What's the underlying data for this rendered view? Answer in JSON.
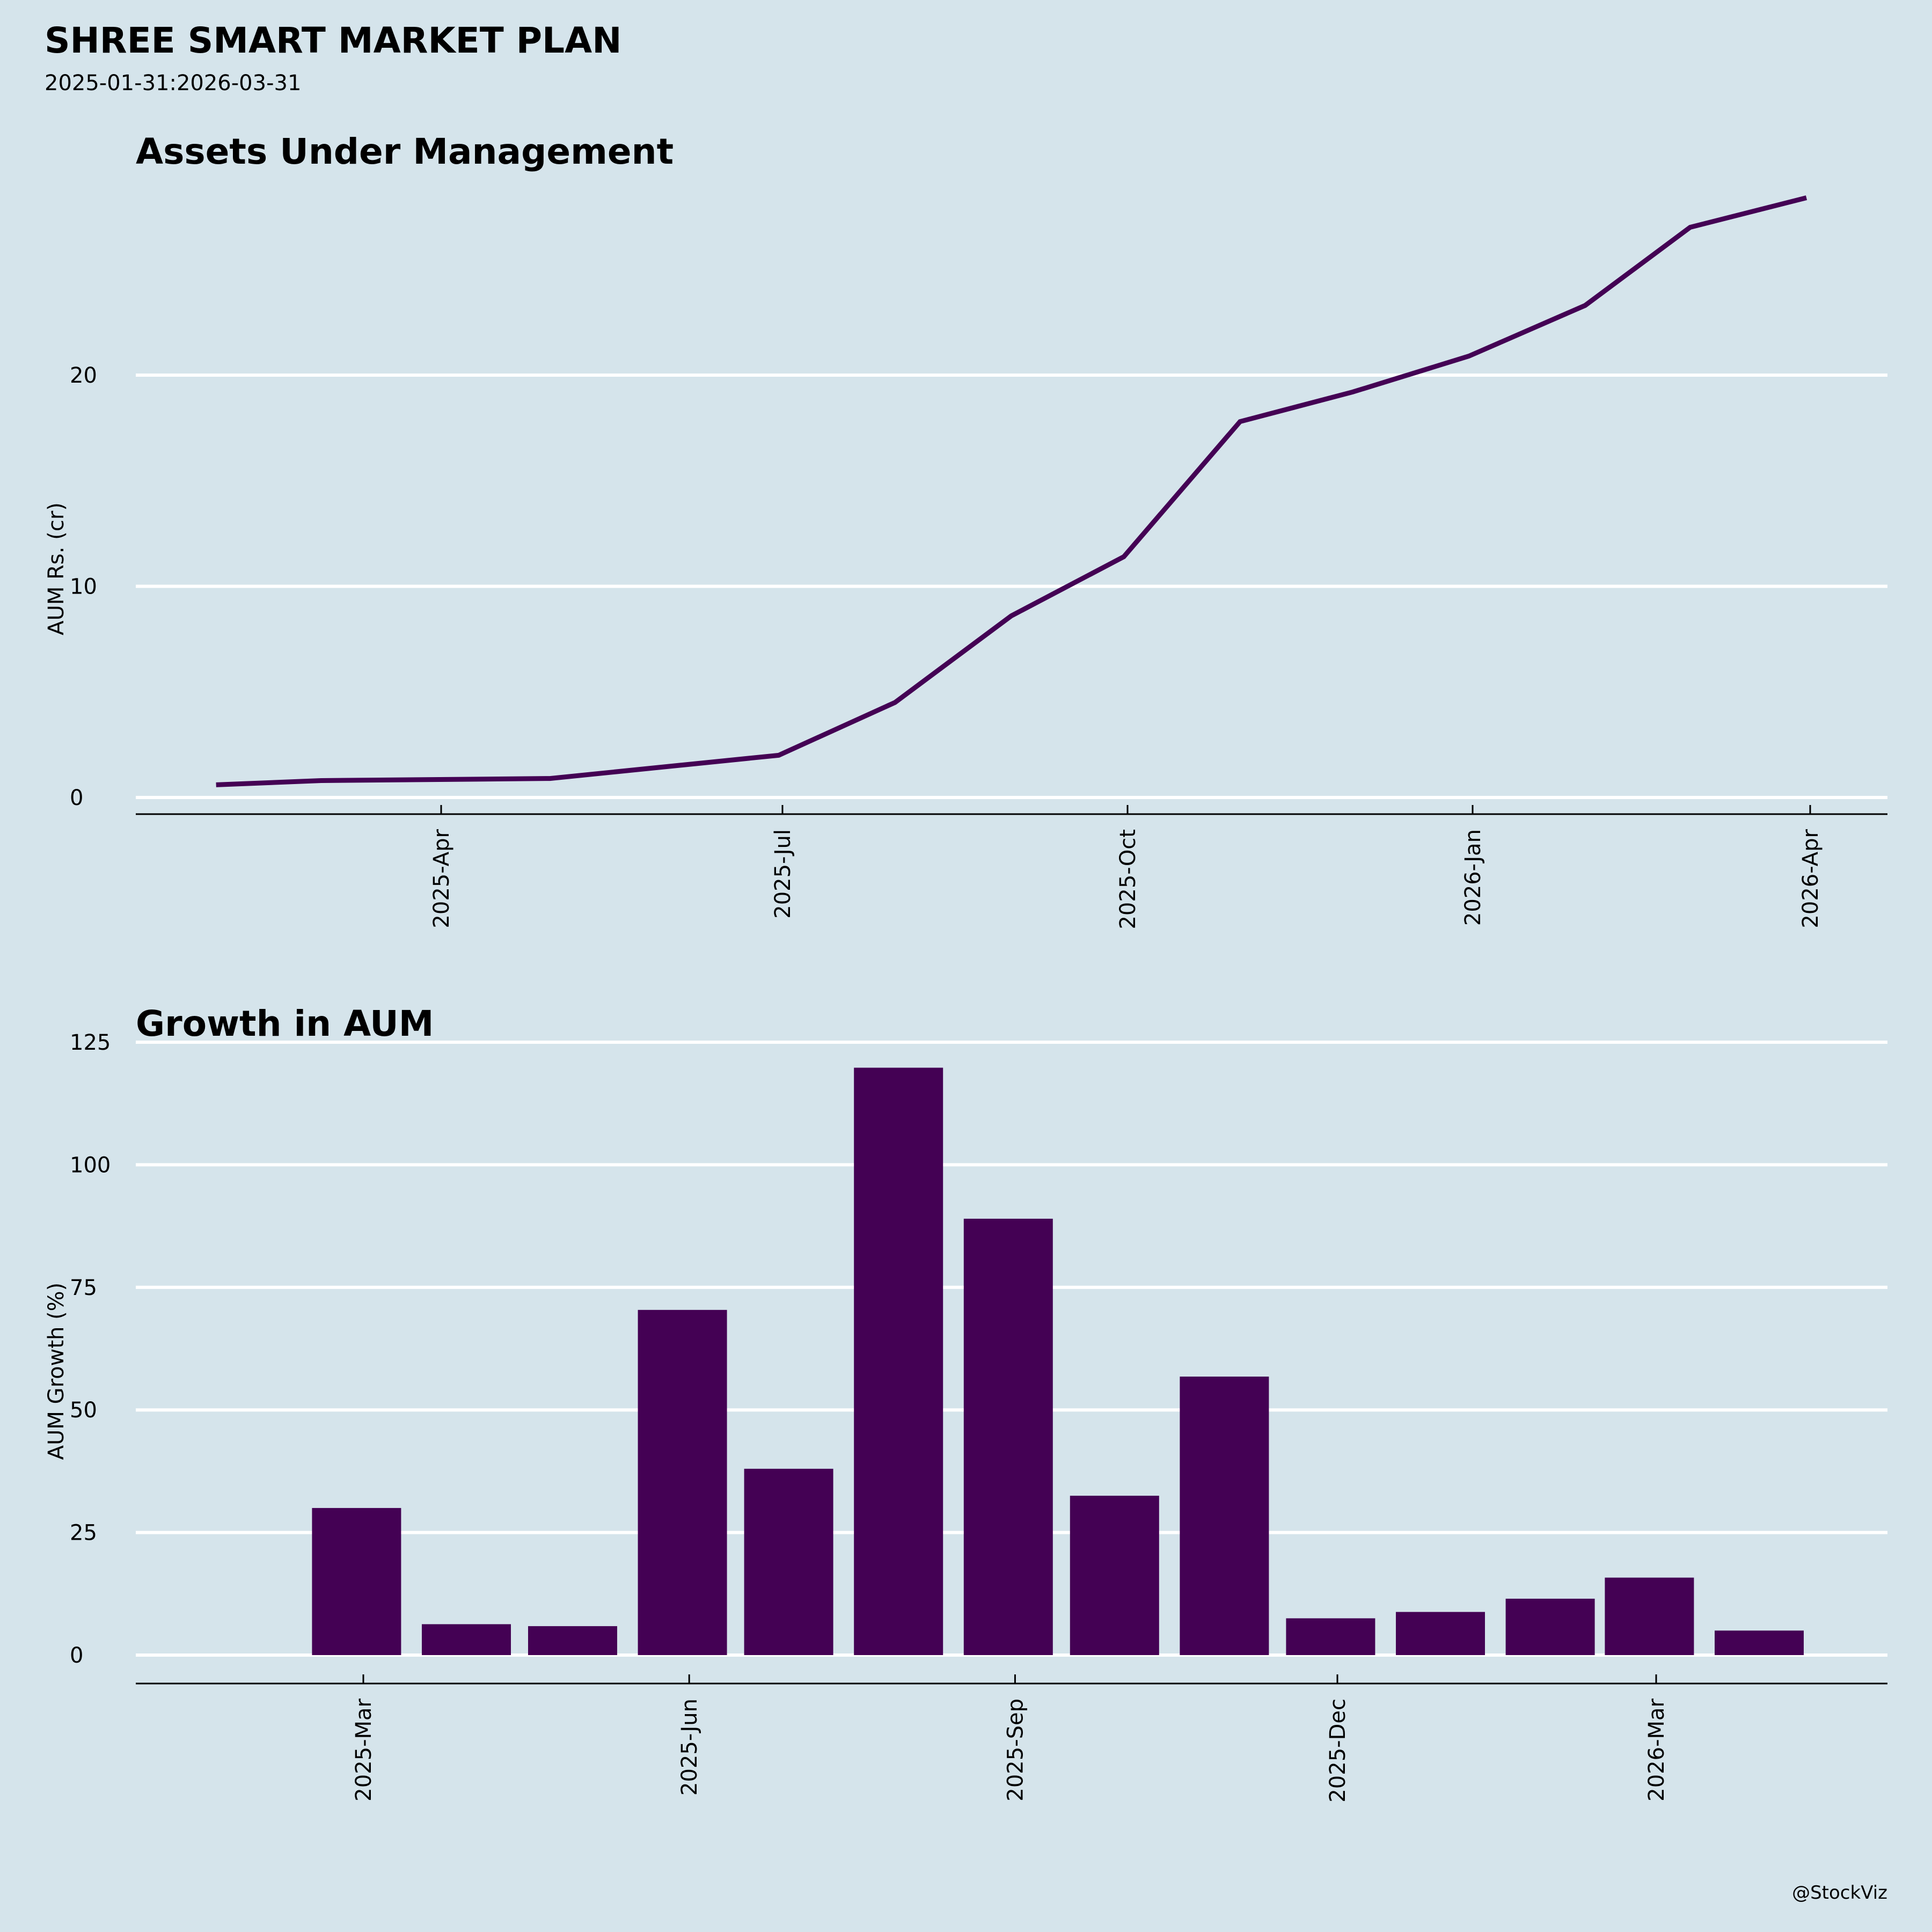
{
  "header": {
    "title": "SHREE SMART MARKET PLAN",
    "subtitle": "2025-01-31:2026-03-31"
  },
  "colors": {
    "background": "#d5e4eb",
    "series": "#440154",
    "grid": "#ffffff"
  },
  "footer": {
    "credit": "@StockViz"
  },
  "chart_data": [
    {
      "type": "line",
      "title": "Assets Under Management",
      "xlabel": "",
      "ylabel": "AUM Rs. (cr)",
      "x": [
        "2025-01-31",
        "2025-02-28",
        "2025-04-30",
        "2025-06-30",
        "2025-07-31",
        "2025-08-31",
        "2025-09-30",
        "2025-10-31",
        "2025-11-30",
        "2025-12-31",
        "2026-01-31",
        "2026-02-28",
        "2026-03-31"
      ],
      "series": [
        {
          "name": "AUM",
          "values": [
            0.6,
            0.8,
            0.9,
            2.0,
            4.5,
            8.6,
            11.4,
            17.8,
            19.2,
            20.9,
            23.3,
            27.0,
            28.4
          ]
        }
      ],
      "xlim": [
        "2025-01-15",
        "2026-04-20"
      ],
      "ylim": [
        -0.8,
        29.5
      ],
      "yticks": [
        0,
        10,
        20
      ],
      "ytick_labels": [
        "0",
        "10",
        "20"
      ],
      "xticks": [
        "2025-04-01",
        "2025-07-01",
        "2025-10-01",
        "2026-01-01",
        "2026-04-01"
      ],
      "xtick_labels": [
        "2025-Apr",
        "2025-Jul",
        "2025-Oct",
        "2026-Jan",
        "2026-Apr"
      ],
      "grid": "horizontal",
      "legend": "none"
    },
    {
      "type": "bar",
      "title": "Growth in AUM",
      "xlabel": "",
      "ylabel": "AUM Growth (%)",
      "x": [
        "2025-02-28",
        "2025-03-31",
        "2025-04-30",
        "2025-05-31",
        "2025-06-30",
        "2025-07-31",
        "2025-08-31",
        "2025-09-30",
        "2025-10-31",
        "2025-11-30",
        "2025-12-31",
        "2026-01-31",
        "2026-02-28",
        "2026-03-31"
      ],
      "values": [
        30.0,
        6.3,
        5.9,
        70.4,
        38.0,
        119.8,
        89.0,
        32.5,
        56.8,
        7.5,
        8.8,
        11.5,
        15.8,
        5.0
      ],
      "ylim": [
        -6,
        125
      ],
      "yticks": [
        0,
        25,
        50,
        75,
        100,
        125
      ],
      "ytick_labels": [
        "0",
        "25",
        "50",
        "75",
        "100",
        "125"
      ],
      "xticks": [
        "2025-03-01",
        "2025-06-01",
        "2025-09-01",
        "2025-12-01",
        "2026-03-01"
      ],
      "xtick_labels": [
        "2025-Mar",
        "2025-Jun",
        "2025-Sep",
        "2025-Dec",
        "2026-Mar"
      ],
      "grid": "horizontal",
      "legend": "none"
    }
  ]
}
